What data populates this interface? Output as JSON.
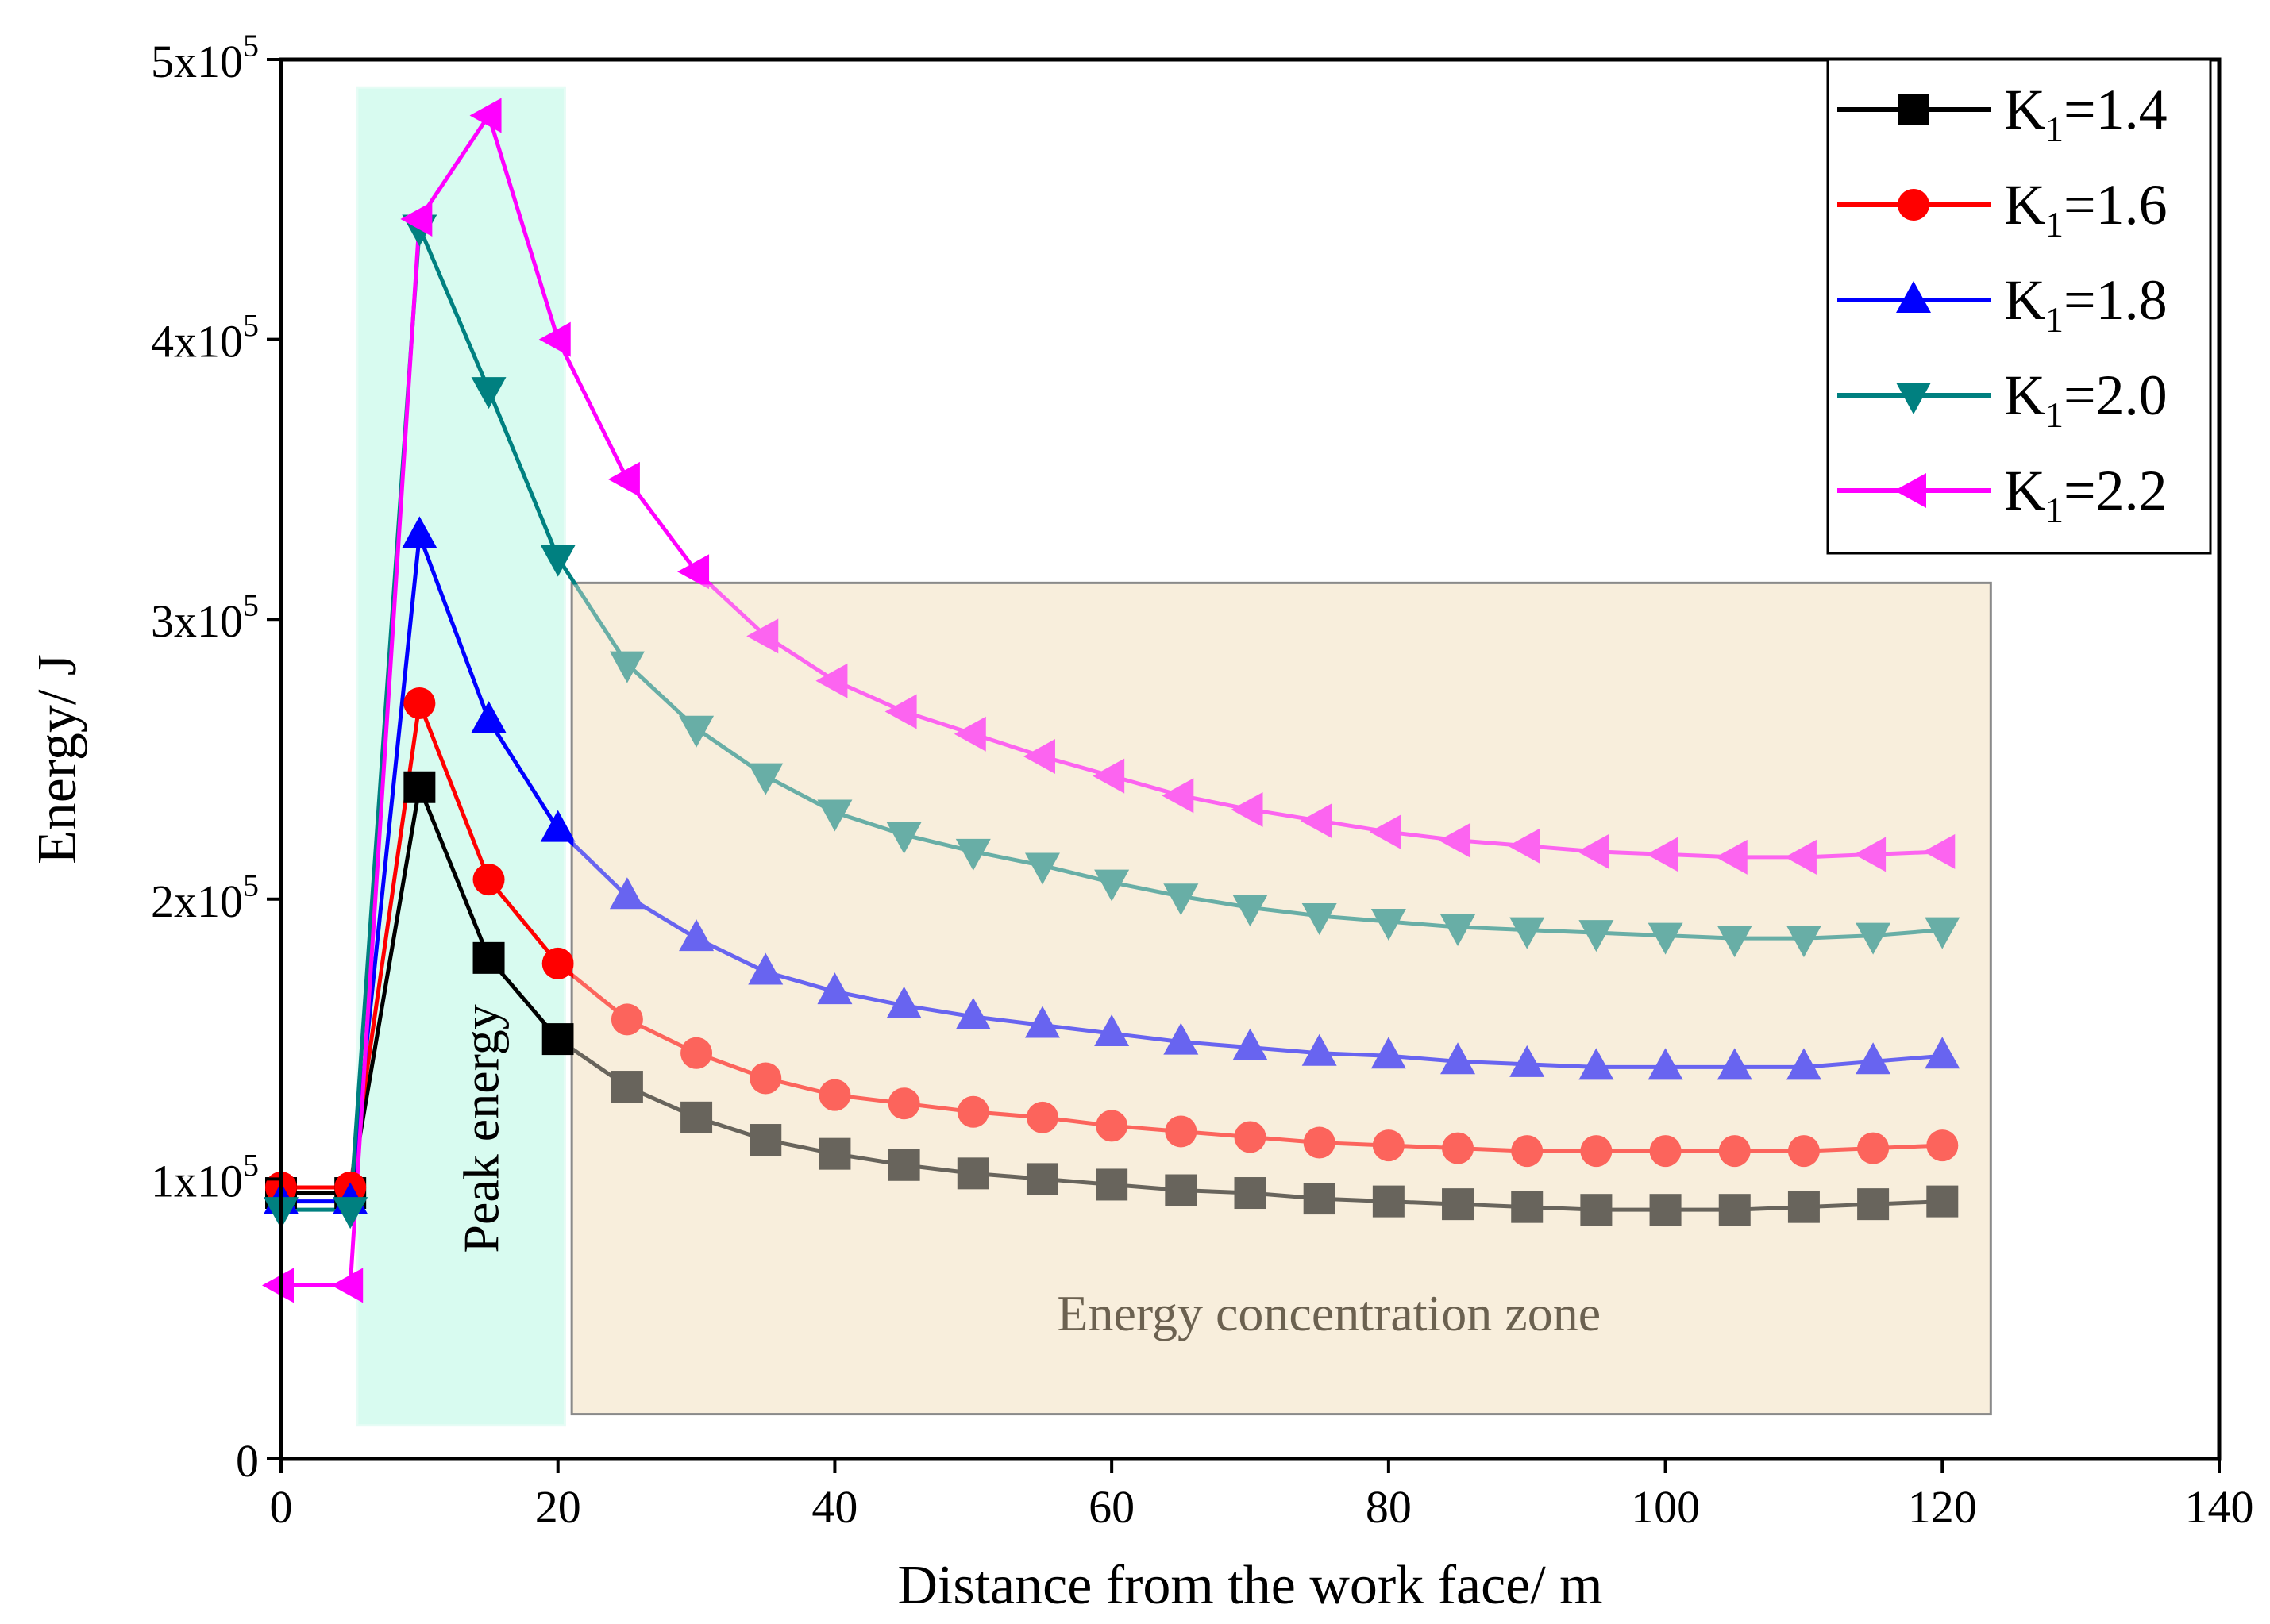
{
  "chart_data": {
    "type": "line",
    "title": "",
    "xlabel": "Distance from the work face/ m",
    "ylabel": "Energy/ J",
    "xlim": [
      0,
      140
    ],
    "ylim": [
      0,
      500000
    ],
    "xticks": [
      0,
      20,
      40,
      60,
      80,
      100,
      120,
      140
    ],
    "yticks": [
      {
        "value": 0,
        "label": "0"
      },
      {
        "value": 100000,
        "label": "1x10",
        "exp": "5"
      },
      {
        "value": 200000,
        "label": "2x10",
        "exp": "5"
      },
      {
        "value": 300000,
        "label": "3x10",
        "exp": "5"
      },
      {
        "value": 400000,
        "label": "4x10",
        "exp": "5"
      },
      {
        "value": 500000,
        "label": "5x10",
        "exp": "5"
      }
    ],
    "grid": false,
    "legend_position": "top-right",
    "x": [
      0,
      5,
      10,
      15,
      20,
      25,
      30,
      35,
      40,
      45,
      50,
      55,
      60,
      65,
      70,
      75,
      80,
      85,
      90,
      95,
      100,
      105,
      110,
      115,
      120
    ],
    "series": [
      {
        "name": "K1=1.4",
        "name_main": "K",
        "name_sub": "1",
        "name_rest": "=1.4",
        "color": "#000000",
        "marker": "square",
        "values": [
          95000,
          95000,
          240000,
          179000,
          150000,
          133000,
          122000,
          114000,
          109000,
          105000,
          102000,
          100000,
          98000,
          96000,
          95000,
          93000,
          92000,
          91000,
          90000,
          89000,
          89000,
          89000,
          90000,
          91000,
          92000
        ]
      },
      {
        "name": "K1=1.6",
        "name_main": "K",
        "name_sub": "1",
        "name_rest": "=1.6",
        "color": "#ff0000",
        "marker": "circle",
        "values": [
          97000,
          97000,
          270000,
          207000,
          177000,
          157000,
          145000,
          136000,
          130000,
          127000,
          124000,
          122000,
          119000,
          117000,
          115000,
          113000,
          112000,
          111000,
          110000,
          110000,
          110000,
          110000,
          110000,
          111000,
          112000
        ]
      },
      {
        "name": "K1=1.8",
        "name_main": "K",
        "name_sub": "1",
        "name_rest": "=1.8",
        "color": "#0000ff",
        "marker": "triangle-up",
        "values": [
          92000,
          92000,
          330000,
          264000,
          225000,
          201000,
          186000,
          174000,
          167000,
          162000,
          158000,
          155000,
          152000,
          149000,
          147000,
          145000,
          144000,
          142000,
          141000,
          140000,
          140000,
          140000,
          140000,
          142000,
          144000
        ]
      },
      {
        "name": "K1=2.0",
        "name_main": "K",
        "name_sub": "1",
        "name_rest": "=2.0",
        "color": "#008080",
        "marker": "triangle-down",
        "values": [
          89000,
          89000,
          440000,
          382000,
          322000,
          284000,
          261000,
          244000,
          231000,
          223000,
          217000,
          212000,
          206000,
          201000,
          197000,
          194000,
          192000,
          190000,
          189000,
          188000,
          187000,
          186000,
          186000,
          187000,
          189000
        ]
      },
      {
        "name": "K1=2.2",
        "name_main": "K",
        "name_sub": "1",
        "name_rest": "=2.2",
        "color": "#ff00ff",
        "marker": "triangle-left",
        "values": [
          62000,
          62000,
          443000,
          480000,
          400000,
          350000,
          317000,
          294000,
          278000,
          267000,
          259000,
          251000,
          244000,
          237000,
          232000,
          228000,
          224000,
          221000,
          219000,
          217000,
          216000,
          215000,
          215000,
          216000,
          217000
        ]
      }
    ],
    "annotations": [
      {
        "text": "Peak energy",
        "x_range": [
          5.5,
          20.5
        ],
        "y_range": [
          12000,
          490000
        ],
        "fill": "#d8fbf0",
        "border": "#e6fcf5",
        "rotated": true
      },
      {
        "text": "Energy concentration zone",
        "x_range": [
          21,
          123.5
        ],
        "y_range": [
          16000,
          313000
        ],
        "fill": "#f8eedc",
        "border": "#8a8a8a",
        "text_color": "#6b6150",
        "rotated": false
      }
    ]
  }
}
